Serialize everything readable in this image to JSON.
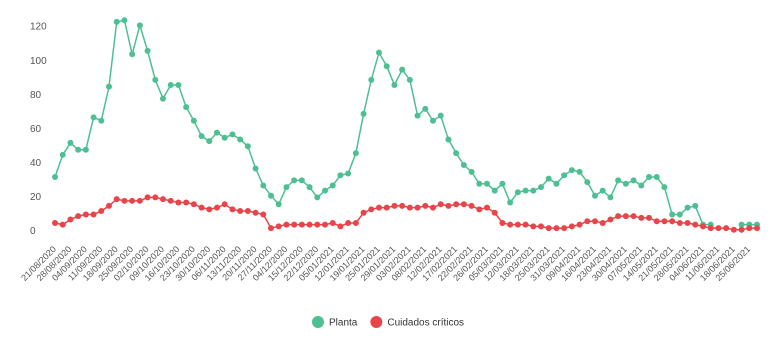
{
  "chart_data": {
    "type": "line",
    "categories": [
      "21/08/2020",
      null,
      "28/08/2020",
      null,
      "04/09/2020",
      null,
      "11/09/2020",
      null,
      "18/09/2020",
      null,
      "25/09/2020",
      null,
      "02/10/2020",
      null,
      "09/10/2020",
      null,
      "16/10/2020",
      null,
      "23/10/2020",
      null,
      "30/10/2020",
      null,
      "06/11/2020",
      null,
      "13/11/2020",
      null,
      "20/11/2020",
      null,
      "27/11/2020",
      null,
      "04/12/2020",
      null,
      "15/12/2020",
      null,
      "22/12/2020",
      null,
      "05/01/2021",
      null,
      "12/01/2021",
      null,
      "19/01/2021",
      null,
      "25/01/2021",
      null,
      "29/01/2021",
      null,
      "03/02/2021",
      null,
      "08/02/2021",
      null,
      "12/02/2021",
      null,
      "17/02/2021",
      null,
      "22/02/2021",
      null,
      "26/02/2021",
      null,
      "05/03/2021",
      null,
      "12/03/2021",
      null,
      "18/03/2021",
      null,
      "25/03/2021",
      null,
      "31/03/2021",
      null,
      "09/04/2021",
      null,
      "16/04/2021",
      null,
      "23/04/2021",
      null,
      "30/04/2021",
      null,
      "07/05/2021",
      null,
      "14/05/2021",
      null,
      "21/05/2021",
      null,
      "28/05/2021",
      null,
      "04/06/2021",
      null,
      "11/06/2021",
      null,
      "18/06/2021",
      null,
      "25/06/2021",
      null
    ],
    "series": [
      {
        "name": "Planta",
        "color": "#4dbf93",
        "values": [
          32,
          45,
          52,
          48,
          48,
          67,
          65,
          85,
          123,
          124,
          104,
          121,
          106,
          89,
          78,
          86,
          86,
          73,
          65,
          56,
          53,
          58,
          55,
          57,
          54,
          50,
          37,
          27,
          21,
          16,
          26,
          30,
          30,
          26,
          20,
          24,
          27,
          33,
          34,
          46,
          69,
          89,
          105,
          97,
          86,
          95,
          89,
          68,
          72,
          65,
          68,
          54,
          46,
          39,
          35,
          28,
          28,
          24,
          28,
          17,
          23,
          24,
          24,
          26,
          31,
          28,
          33,
          36,
          35,
          29,
          21,
          24,
          20,
          30,
          28,
          30,
          27,
          32,
          32,
          26,
          10,
          10,
          14,
          15,
          4,
          4,
          null,
          null,
          null,
          4,
          4,
          4
        ]
      },
      {
        "name": "Cuidados críticos",
        "color": "#e8454b",
        "values": [
          5,
          4,
          7,
          9,
          10,
          10,
          12,
          15,
          19,
          18,
          18,
          18,
          20,
          20,
          19,
          18,
          17,
          17,
          16,
          14,
          13,
          14,
          16,
          13,
          12,
          12,
          11,
          10,
          2,
          3,
          4,
          4,
          4,
          4,
          4,
          4,
          5,
          3,
          5,
          5,
          11,
          13,
          14,
          14,
          15,
          15,
          14,
          14,
          15,
          14,
          16,
          15,
          16,
          16,
          15,
          13,
          14,
          11,
          5,
          4,
          4,
          4,
          3,
          3,
          2,
          2,
          2,
          3,
          4,
          6,
          6,
          5,
          7,
          9,
          9,
          9,
          8,
          8,
          6,
          6,
          6,
          5,
          5,
          4,
          3,
          2,
          2,
          2,
          1,
          1,
          2,
          2
        ]
      }
    ],
    "ylim": [
      -5,
      130
    ],
    "yticks": [
      0,
      20,
      40,
      60,
      80,
      100,
      120
    ],
    "grid": false,
    "legend": "bottom"
  }
}
